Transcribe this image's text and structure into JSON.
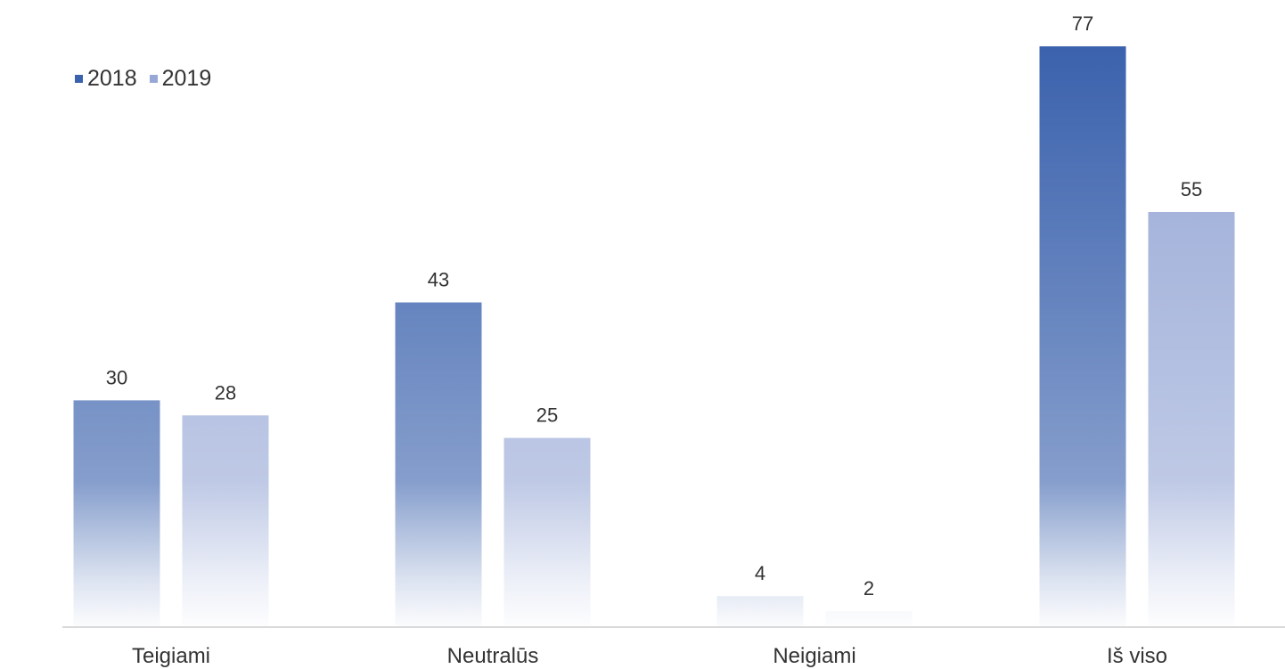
{
  "chart_data": {
    "type": "bar",
    "categories": [
      "Teigiami",
      "Neutralūs",
      "Neigiami",
      "Iš viso"
    ],
    "series": [
      {
        "name": "2018",
        "values": [
          30,
          43,
          4,
          77
        ],
        "color": "#3b62ad"
      },
      {
        "name": "2019",
        "values": [
          28,
          25,
          2,
          55
        ],
        "color": "#97a8d6"
      }
    ],
    "title": "",
    "xlabel": "",
    "ylabel": "",
    "ylim": [
      0,
      77
    ],
    "grid": false,
    "legend_position": "top-left"
  }
}
